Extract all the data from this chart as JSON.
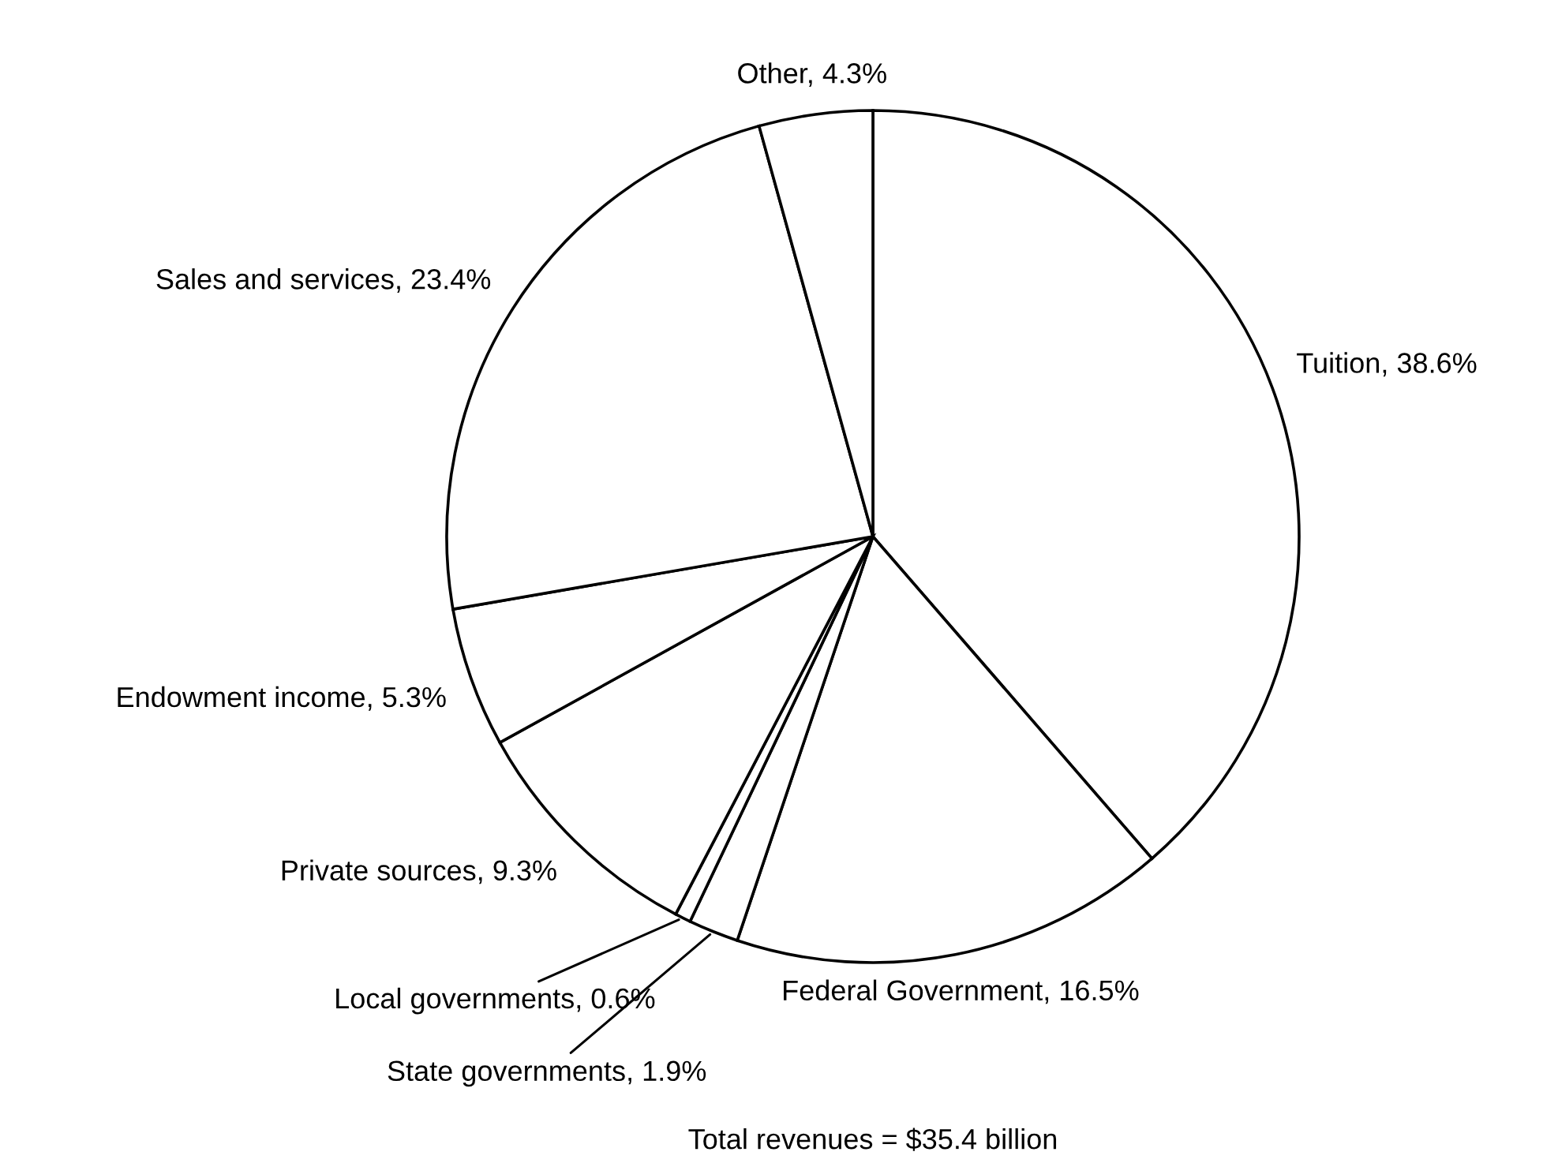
{
  "chart_data": {
    "type": "pie",
    "categories": [
      "Tuition",
      "Federal Government",
      "State governments",
      "Local governments",
      "Private sources",
      "Endowment income",
      "Sales and services",
      "Other"
    ],
    "values": [
      38.6,
      16.5,
      1.9,
      0.6,
      9.3,
      5.3,
      23.4,
      4.3
    ],
    "colors": [
      "#ffffff",
      "#ffffff",
      "#ffffff",
      "#ffffff",
      "#ffffff",
      "#ffffff",
      "#ffffff",
      "#ffffff"
    ],
    "value_labels": [
      "38.6%",
      "16.5%",
      "1.9%",
      "0.6%",
      "9.3%",
      "5.3%",
      "23.4%",
      "4.3%"
    ],
    "annotations": [
      "Total revenues = $35.4 billion"
    ]
  }
}
